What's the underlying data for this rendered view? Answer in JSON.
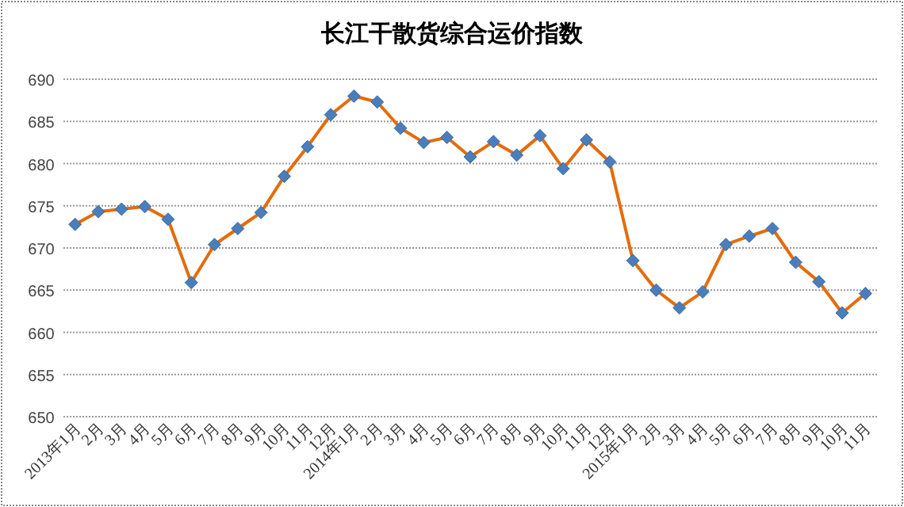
{
  "chart_data": {
    "type": "line",
    "title": "长江干散货综合运价指数",
    "categories": [
      "2013年1月",
      "2月",
      "3月",
      "4月",
      "5月",
      "6月",
      "7月",
      "8月",
      "9月",
      "10月",
      "11月",
      "12月",
      "2014年1月",
      "2月",
      "3月",
      "4月",
      "5月",
      "6月",
      "7月",
      "8月",
      "9月",
      "10月",
      "11月",
      "12月",
      "2015年1月",
      "2月",
      "3月",
      "4月",
      "5月",
      "6月",
      "7月",
      "8月",
      "9月",
      "10月",
      "11月"
    ],
    "series": [
      {
        "color": "#e46c0a",
        "values": [
          672.8,
          674.3,
          674.6,
          674.9,
          673.4,
          665.9,
          670.4,
          672.3,
          674.2,
          678.5,
          682.0,
          685.8,
          688.0,
          687.3,
          684.2,
          682.5,
          683.1,
          680.8,
          682.6,
          681.0,
          683.3,
          679.4,
          682.8,
          680.2,
          668.5,
          665.0,
          662.9,
          664.8,
          670.4,
          671.4,
          672.3,
          668.3,
          666.0,
          662.3,
          664.6
        ]
      }
    ],
    "ylim": [
      650,
      690
    ],
    "yticks": [
      650,
      655,
      660,
      665,
      670,
      675,
      680,
      685,
      690
    ],
    "grid": "y",
    "marker": "diamond",
    "line_style": "solid"
  }
}
